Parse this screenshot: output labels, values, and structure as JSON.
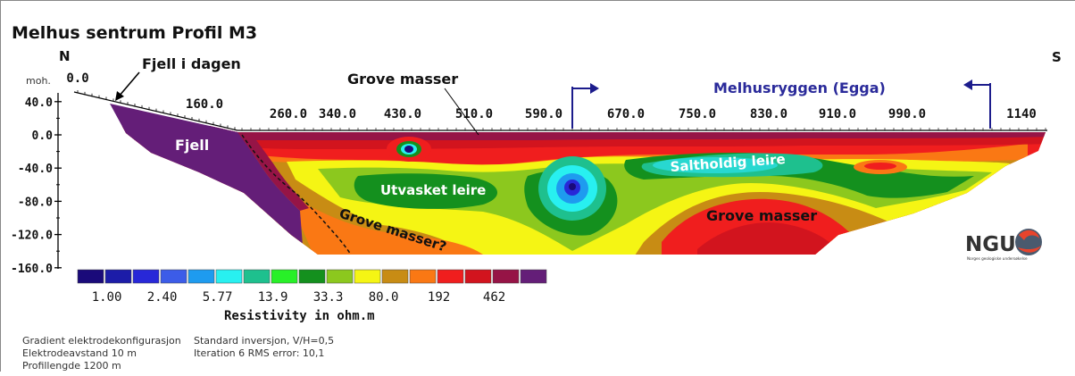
{
  "title": "Melhus sentrum Profil M3",
  "compass": {
    "left": "N",
    "right": "S"
  },
  "chart_data": {
    "type": "heatmap",
    "title": "Melhus sentrum Profil M3",
    "y_unit_label": "moh.",
    "x_ticks": [
      {
        "label": "0.0",
        "value": 0
      },
      {
        "label": "160.0",
        "value": 160
      },
      {
        "label": "260.0",
        "value": 260
      },
      {
        "label": "340.0",
        "value": 340
      },
      {
        "label": "430.0",
        "value": 430
      },
      {
        "label": "510.0",
        "value": 510
      },
      {
        "label": "590.0",
        "value": 590
      },
      {
        "label": "670.0",
        "value": 670
      },
      {
        "label": "750.0",
        "value": 750
      },
      {
        "label": "830.0",
        "value": 830
      },
      {
        "label": "910.0",
        "value": 910
      },
      {
        "label": "990.0",
        "value": 990
      },
      {
        "label": "1140",
        "value": 1140
      }
    ],
    "y_ticks": [
      {
        "label": "40.0",
        "value": 40
      },
      {
        "label": "0.0",
        "value": 0
      },
      {
        "label": "-40.0",
        "value": -40
      },
      {
        "label": "-80.0",
        "value": -80
      },
      {
        "label": "-120.0",
        "value": -120
      },
      {
        "label": "-160.0",
        "value": -160
      }
    ],
    "colorbar": {
      "colors": [
        "#1a0a7a",
        "#1c1ca8",
        "#2828d8",
        "#3c5ce8",
        "#1e9bef",
        "#28f0f0",
        "#1ec08e",
        "#28f028",
        "#14901e",
        "#8cc81e",
        "#f5f514",
        "#c88c14",
        "#fa7814",
        "#f01e1e",
        "#d2141e",
        "#961446",
        "#641e78"
      ],
      "labels": [
        "1.00",
        "2.40",
        "5.77",
        "13.9",
        "33.3",
        "80.0",
        "192",
        "462"
      ],
      "title": "Resistivity in ohm.m"
    },
    "annotations": [
      "Fjell i dagen",
      "Grove masser",
      "Melhusryggen (Egga)",
      "Fjell",
      "Saltholdig leire",
      "Utvasket leire",
      "Grove masser?",
      "Grove masser"
    ]
  },
  "logo": {
    "text": "NGU",
    "subtitle": "Norges geologiske undersøkelse"
  },
  "footer": {
    "col1": [
      "Gradient elektrodekonfigurasjon",
      "Elektrodeavstand 10 m",
      "Profillengde 1200 m"
    ],
    "col2": [
      "Standard inversjon, V/H=0,5",
      "Iteration 6 RMS error: 10,1"
    ]
  }
}
